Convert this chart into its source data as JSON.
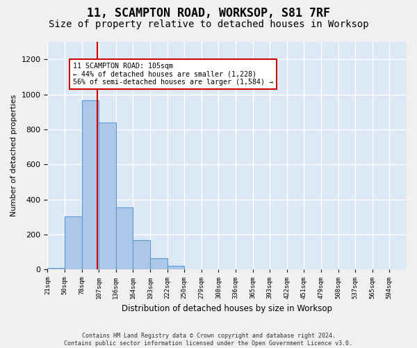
{
  "title1": "11, SCAMPTON ROAD, WORKSOP, S81 7RF",
  "title2": "Size of property relative to detached houses in Worksop",
  "xlabel": "Distribution of detached houses by size in Worksop",
  "ylabel": "Number of detached properties",
  "bar_labels": [
    "21sqm",
    "50sqm",
    "78sqm",
    "107sqm",
    "136sqm",
    "164sqm",
    "193sqm",
    "222sqm",
    "250sqm",
    "279sqm",
    "308sqm",
    "336sqm",
    "365sqm",
    "393sqm",
    "422sqm",
    "451sqm",
    "479sqm",
    "508sqm",
    "537sqm",
    "565sqm",
    "594sqm"
  ],
  "bar_heights": [
    10,
    305,
    965,
    840,
    355,
    170,
    65,
    20,
    0,
    0,
    0,
    0,
    0,
    0,
    0,
    0,
    0,
    0,
    0,
    0,
    0
  ],
  "bar_color": "#aec6e8",
  "bar_edge_color": "#5b9bd5",
  "background_color": "#dde8f5",
  "grid_color": "#ffffff",
  "vline_x": 2.93,
  "vline_color": "#cc0000",
  "annotation_text": "11 SCAMPTON ROAD: 105sqm\n← 44% of detached houses are smaller (1,228)\n56% of semi-detached houses are larger (1,584) →",
  "annotation_box_color": "#ffffff",
  "annotation_box_edge_color": "#cc0000",
  "ylim": [
    0,
    1300
  ],
  "yticks": [
    0,
    200,
    400,
    600,
    800,
    1000,
    1200
  ],
  "footnote": "Contains HM Land Registry data © Crown copyright and database right 2024.\nContains public sector information licensed under the Open Government Licence v3.0.",
  "title_fontsize": 12,
  "subtitle_fontsize": 10
}
